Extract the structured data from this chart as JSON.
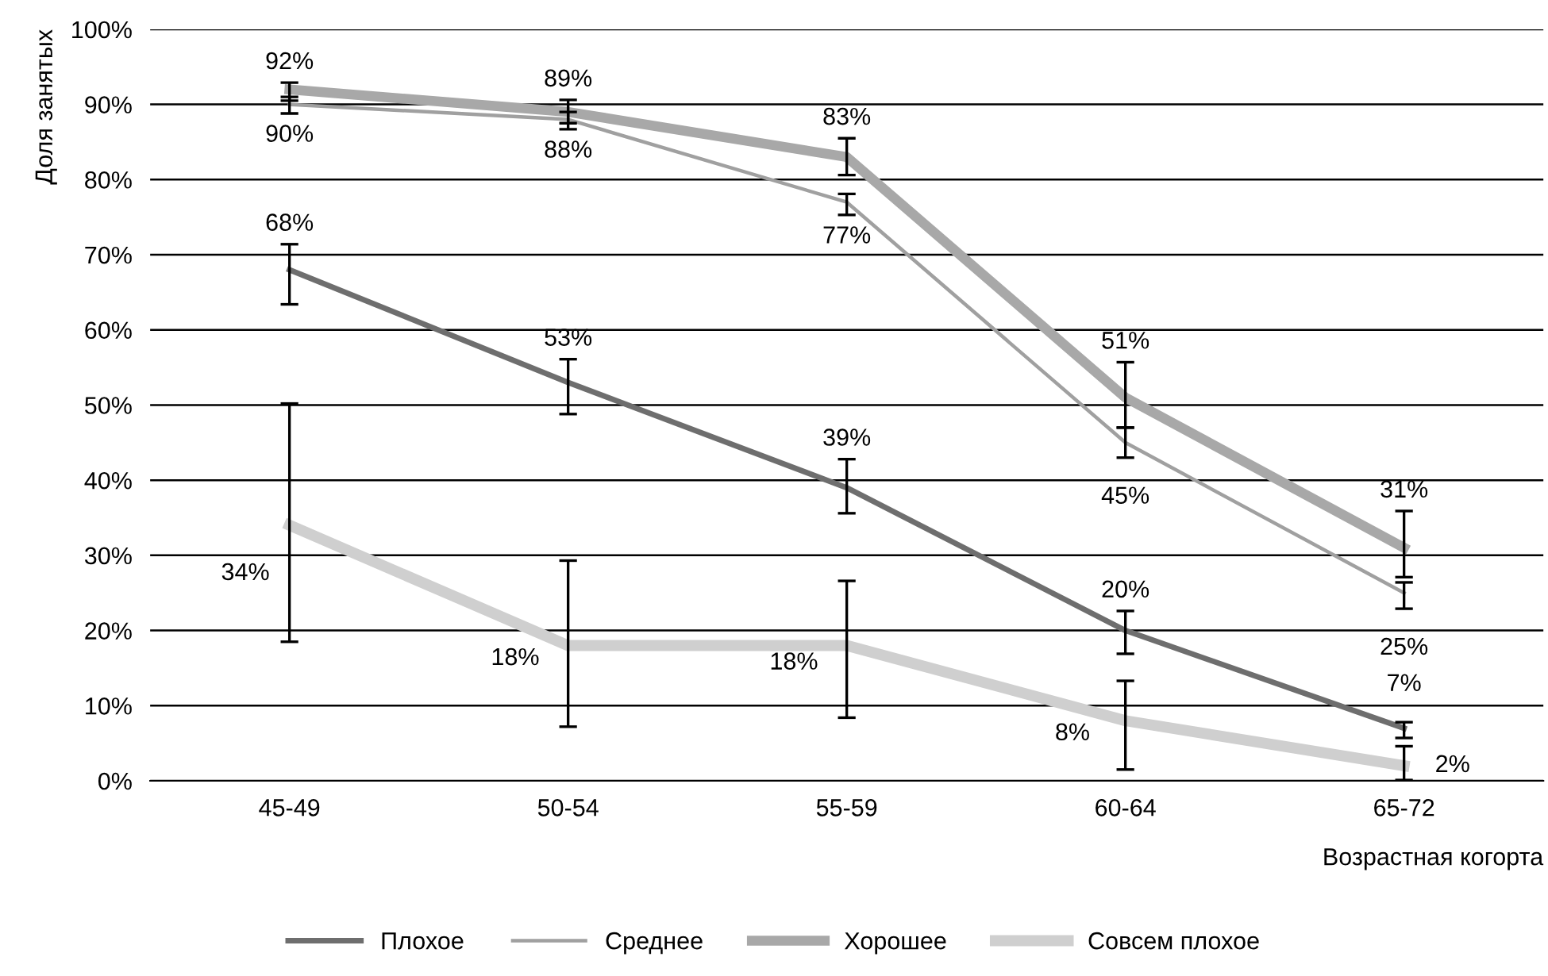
{
  "chart_data": {
    "type": "line",
    "xlabel": "Возрастная когорта",
    "ylabel": "Доля занятых",
    "categories": [
      "45-49",
      "50-54",
      "55-59",
      "60-64",
      "65-72"
    ],
    "ylim": [
      0,
      100
    ],
    "yticks": [
      {
        "value": 0,
        "label": "0%"
      },
      {
        "value": 10,
        "label": "10%"
      },
      {
        "value": 20,
        "label": "20%"
      },
      {
        "value": 30,
        "label": "30%"
      },
      {
        "value": 40,
        "label": "40%"
      },
      {
        "value": 50,
        "label": "50%"
      },
      {
        "value": 60,
        "label": "60%"
      },
      {
        "value": 70,
        "label": "70%"
      },
      {
        "value": 80,
        "label": "80%"
      },
      {
        "value": 90,
        "label": "90%"
      },
      {
        "value": 100,
        "label": "100%"
      }
    ],
    "grid": "y",
    "legend": "bottom",
    "marker": "none",
    "line_style": "solid",
    "series": [
      {
        "name": "Плохое",
        "color": "#6e6e6e",
        "values": [
          68,
          53,
          39,
          20,
          7
        ],
        "value_labels": [
          "68%",
          "53%",
          "39%",
          "20%",
          "7%"
        ],
        "errors": [
          [
            63.4,
            71.4
          ],
          [
            48.8,
            56.1
          ],
          [
            35.6,
            42.8
          ],
          [
            16.9,
            22.6
          ],
          [
            5.7,
            7.8
          ]
        ]
      },
      {
        "name": "Среднее",
        "color": "#a0a0a0",
        "values": [
          90,
          88,
          77,
          45,
          25
        ],
        "value_labels": [
          "90%",
          "88%",
          "77%",
          "45%",
          "25%"
        ],
        "errors": [
          [
            88.8,
            91
          ],
          [
            86.7,
            89
          ],
          [
            75.3,
            78.1
          ],
          [
            43,
            47
          ],
          [
            22.9,
            26.4
          ]
        ]
      },
      {
        "name": "Хорошее",
        "color": "#a8a8a8",
        "values": [
          92,
          89,
          83,
          51,
          31
        ],
        "value_labels": [
          "92%",
          "89%",
          "83%",
          "51%",
          "31%"
        ],
        "errors": [
          [
            90.5,
            92.9
          ],
          [
            87.5,
            90.6
          ],
          [
            80.6,
            85.5
          ],
          [
            47,
            55.7
          ],
          [
            27.1,
            35.9
          ]
        ]
      },
      {
        "name": "Совсем плохое",
        "color": "#cfcfcf",
        "values": [
          34,
          18,
          18,
          8,
          2
        ],
        "value_labels": [
          "34%",
          "18%",
          "18%",
          "8%",
          "2%"
        ],
        "errors": [
          [
            18.5,
            50.2
          ],
          [
            7.2,
            29.3
          ],
          [
            8.4,
            26.6
          ],
          [
            1.5,
            13.3
          ],
          [
            0.1,
            4.6
          ]
        ]
      }
    ]
  }
}
